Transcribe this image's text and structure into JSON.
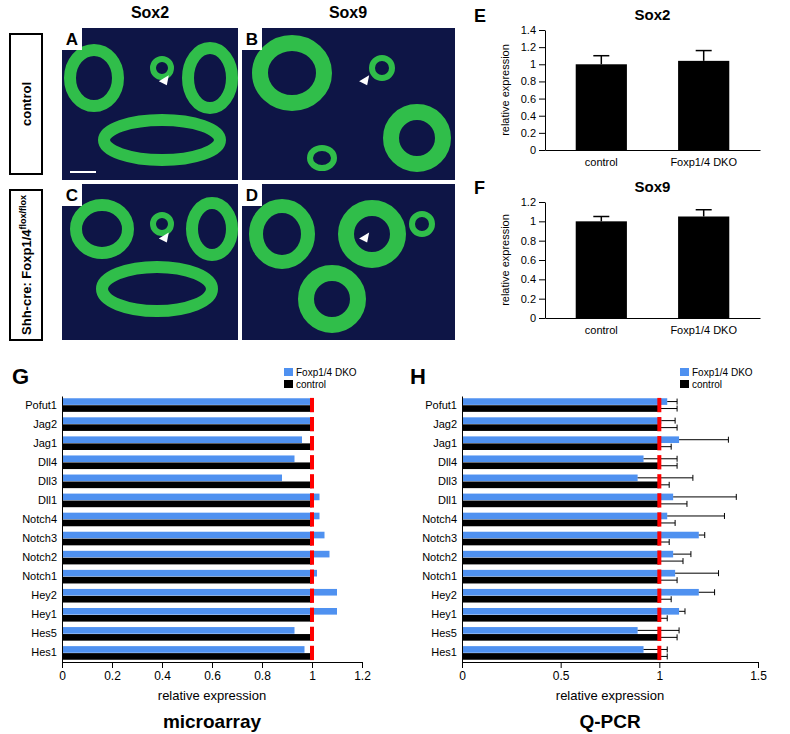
{
  "figure": {
    "column_titles": [
      "Sox2",
      "Sox9"
    ],
    "row_labels": [
      {
        "text": "control"
      },
      {
        "text": "Shh-cre: Foxp1/4",
        "superscript": "flox/flox"
      }
    ],
    "panel_letters": [
      "A",
      "B",
      "C",
      "D"
    ]
  },
  "chart_data": [
    {
      "panel": "E",
      "type": "bar",
      "title": "Sox2",
      "ylabel": "relative expression",
      "categories": [
        "control",
        "Foxp1/4 DKO"
      ],
      "values": [
        1.0,
        1.04
      ],
      "errors": [
        0.1,
        0.12
      ],
      "color": "#000000",
      "ylim": [
        0,
        1.4
      ],
      "yticks": [
        0,
        0.2,
        0.4,
        0.6,
        0.8,
        1,
        1.2,
        1.4
      ]
    },
    {
      "panel": "F",
      "type": "bar",
      "title": "Sox9",
      "ylabel": "relative expression",
      "categories": [
        "control",
        "Foxp1/4 DKO"
      ],
      "values": [
        1.0,
        1.05
      ],
      "errors": [
        0.05,
        0.07
      ],
      "color": "#000000",
      "ylim": [
        0,
        1.2
      ],
      "yticks": [
        0,
        0.2,
        0.4,
        0.6,
        0.8,
        1,
        1.2
      ]
    },
    {
      "panel": "G",
      "type": "bar",
      "orientation": "horizontal",
      "title": "microarray",
      "xlabel": "relative expression",
      "categories": [
        "Pofut1",
        "Jag2",
        "Jag1",
        "Dll4",
        "Dll3",
        "Dll1",
        "Notch4",
        "Notch3",
        "Notch2",
        "Notch1",
        "Hey2",
        "Hey1",
        "Hes5",
        "Hes1"
      ],
      "series": [
        {
          "name": "Foxp1/4 DKO",
          "color": "#4f91f0",
          "values": [
            1.0,
            1.0,
            0.96,
            0.93,
            0.88,
            1.03,
            1.03,
            1.05,
            1.07,
            1.02,
            1.1,
            1.1,
            0.93,
            0.97
          ]
        },
        {
          "name": "control",
          "color": "#000000",
          "values": [
            1,
            1,
            1,
            1,
            1,
            1,
            1,
            1,
            1,
            1,
            1,
            1,
            1,
            1
          ]
        }
      ],
      "xlim": [
        0,
        1.2
      ],
      "xticks": [
        0,
        0.2,
        0.4,
        0.6,
        0.8,
        1,
        1.2
      ],
      "legend": "upper right",
      "reference": {
        "value": 1,
        "color": "#ff0000"
      }
    },
    {
      "panel": "H",
      "type": "bar",
      "orientation": "horizontal",
      "title": "Q-PCR",
      "xlabel": "relative expression",
      "categories": [
        "Pofut1",
        "Jag2",
        "Jag1",
        "Dll4",
        "Dll3",
        "Dll1",
        "Notch4",
        "Notch3",
        "Notch2",
        "Notch1",
        "Hey2",
        "Hey1",
        "Hes5",
        "Hes1"
      ],
      "series": [
        {
          "name": "Foxp1/4 DKO",
          "color": "#4f91f0",
          "values": [
            1.04,
            1.01,
            1.1,
            0.92,
            0.89,
            1.07,
            1.04,
            1.2,
            1.07,
            1.08,
            1.2,
            1.1,
            0.89,
            0.92
          ],
          "errors": [
            0.05,
            0.07,
            0.25,
            0.17,
            0.28,
            0.32,
            0.29,
            0.03,
            0.09,
            0.22,
            0.08,
            0.03,
            0.21,
            0.12
          ]
        },
        {
          "name": "control",
          "color": "#000000",
          "values": [
            1,
            1,
            1,
            1,
            1,
            1,
            1,
            1,
            1,
            1,
            1,
            1,
            1,
            1
          ],
          "errors": [
            0.09,
            0.09,
            0.06,
            0.09,
            0.05,
            0.14,
            0.08,
            0.05,
            0.12,
            0.09,
            0.06,
            0.04,
            0.09,
            0.04
          ]
        }
      ],
      "xlim": [
        0,
        1.5
      ],
      "xticks": [
        0,
        0.5,
        1,
        1.5
      ],
      "legend": "upper right",
      "reference": {
        "value": 1,
        "color": "#ff0000"
      }
    }
  ]
}
